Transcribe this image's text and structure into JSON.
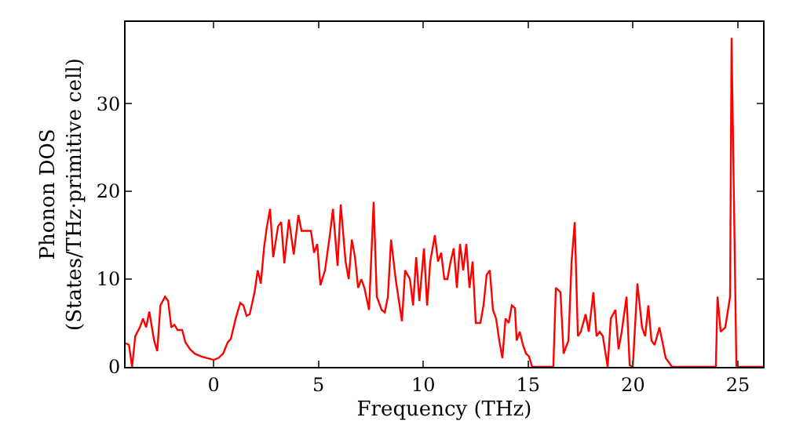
{
  "chart_data": {
    "type": "line",
    "xlabel": "Frequency (THz)",
    "ylabel": "Phonon DOS\n(States/THz·primitive cell)",
    "xlim": [
      -4.2,
      26.2
    ],
    "ylim": [
      0,
      39.3
    ],
    "xticks": [
      0,
      5,
      10,
      15,
      20,
      25
    ],
    "yticks": [
      0,
      10,
      20,
      30
    ],
    "legend": false,
    "marker": "none",
    "line_style": "solid",
    "x": [
      -4.19,
      -4.04,
      -3.89,
      -3.74,
      -3.52,
      -3.37,
      -3.22,
      -3.07,
      -2.84,
      -2.69,
      -2.54,
      -2.32,
      -2.17,
      -2.02,
      -1.87,
      -1.72,
      -1.5,
      -1.35,
      -1.12,
      -0.9,
      -0.6,
      -0.3,
      0,
      0.22,
      0.45,
      0.67,
      0.82,
      1.05,
      1.27,
      1.42,
      1.57,
      1.72,
      1.95,
      2.1,
      2.25,
      2.4,
      2.54,
      2.69,
      2.84,
      3.07,
      3.22,
      3.37,
      3.59,
      3.82,
      4.04,
      4.19,
      4.42,
      4.64,
      4.79,
      4.94,
      5.09,
      5.31,
      5.54,
      5.69,
      5.91,
      6.06,
      6.29,
      6.44,
      6.59,
      6.74,
      6.89,
      7.04,
      7.19,
      7.41,
      7.63,
      7.78,
      8.01,
      8.16,
      8.31,
      8.46,
      8.68,
      8.98,
      9.13,
      9.36,
      9.51,
      9.66,
      9.81,
      10.03,
      10.18,
      10.33,
      10.55,
      10.7,
      10.85,
      11.0,
      11.15,
      11.3,
      11.45,
      11.6,
      11.75,
      11.9,
      12.05,
      12.2,
      12.35,
      12.5,
      12.72,
      12.87,
      13.02,
      13.17,
      13.32,
      13.47,
      13.62,
      13.77,
      13.92,
      14.07,
      14.22,
      14.37,
      14.45,
      14.6,
      14.75,
      14.9,
      15.04,
      15.19,
      15.49,
      16.2,
      16.32,
      16.54,
      16.69,
      16.92,
      17.07,
      17.22,
      17.37,
      17.51,
      17.74,
      17.89,
      18.11,
      18.26,
      18.41,
      18.56,
      18.79,
      18.94,
      19.16,
      19.31,
      19.46,
      19.69,
      19.84,
      19.99,
      20.21,
      20.43,
      20.58,
      20.73,
      20.88,
      21.03,
      21.26,
      21.56,
      21.86,
      23.95,
      24.03,
      24.18,
      24.4,
      24.63,
      24.7,
      24.93,
      26.2
    ],
    "series": [
      {
        "color": "#ff0000",
        "values": [
          2.7,
          2.5,
          0,
          3.5,
          4.5,
          5.5,
          4.5,
          6.3,
          3,
          1.8,
          7,
          8,
          7.5,
          4.5,
          4.8,
          4.2,
          4.2,
          2.8,
          2,
          1.5,
          1.2,
          1.0,
          0.8,
          1.0,
          1.5,
          2.8,
          3.2,
          5.5,
          7.3,
          7.0,
          5.8,
          6.0,
          8.5,
          11,
          9.5,
          13.5,
          16,
          18,
          12.5,
          16,
          16.5,
          11.8,
          16.8,
          12.8,
          17.3,
          15.5,
          15.5,
          15.5,
          13,
          14,
          9.3,
          11,
          15,
          18,
          11.5,
          18.5,
          12,
          10,
          14.5,
          12.5,
          9,
          10,
          9,
          6.5,
          18.8,
          8,
          6.5,
          6.2,
          8,
          14.5,
          10,
          5.2,
          11,
          10,
          7,
          12.5,
          7.5,
          13.5,
          7,
          12,
          15,
          12,
          13,
          10,
          10,
          12,
          13.5,
          9,
          14,
          11,
          14,
          9,
          12,
          5,
          5,
          7,
          10.5,
          11,
          6.5,
          5.5,
          3,
          1,
          5.5,
          5,
          7,
          6.7,
          3,
          4,
          2.5,
          1.5,
          1.2,
          0,
          0,
          0,
          9,
          8.5,
          1.5,
          3,
          12,
          16.5,
          3.5,
          4,
          6,
          4,
          8.5,
          3.5,
          4,
          3.5,
          0,
          5.5,
          6.5,
          2,
          4,
          8,
          0.2,
          0,
          9.5,
          4.5,
          3.5,
          7,
          3,
          2.5,
          4.5,
          1,
          0,
          0,
          8,
          4,
          4.5,
          8,
          37.5,
          0,
          0
        ]
      }
    ]
  }
}
